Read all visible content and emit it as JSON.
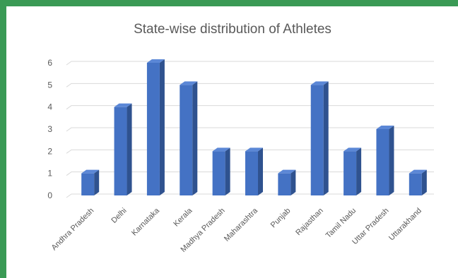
{
  "chart_data": {
    "type": "bar",
    "title": "State-wise distribution of Athletes",
    "xlabel": "",
    "ylabel": "",
    "categories": [
      "Andhra Pradesh",
      "Delhi",
      "Karnataka",
      "Kerala",
      "Madhya Pradesh",
      "Maharashtra",
      "Punjab",
      "Rajasthan",
      "Tamil Nadu",
      "Uttar Pradesh",
      "Uttarakhand"
    ],
    "values": [
      1,
      4,
      6,
      5,
      2,
      2,
      1,
      5,
      2,
      3,
      1
    ],
    "ylim": [
      0,
      6
    ],
    "yticks": [
      "0",
      "1",
      "2",
      "3",
      "4",
      "5",
      "6"
    ],
    "grid": true,
    "legend": "none",
    "style": "3d-column"
  },
  "colors": {
    "bar_front": "#4472c4",
    "bar_side": "#2f528f",
    "bar_top": "#5b87d6",
    "grid": "#d9d9d9",
    "frame": "#3a9a55"
  }
}
